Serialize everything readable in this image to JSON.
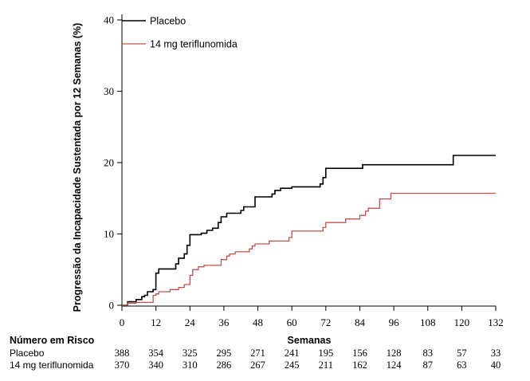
{
  "chart_data": {
    "type": "line",
    "xlabel": "Semanas",
    "ylabel": "Progressão da Incapacidade Sustentada por 12 Semanas (%)",
    "xlim": [
      0,
      132
    ],
    "ylim": [
      0,
      40
    ],
    "x_ticks": [
      0,
      12,
      24,
      36,
      48,
      60,
      72,
      84,
      96,
      108,
      120,
      132
    ],
    "y_ticks": [
      0,
      10,
      20,
      30,
      40
    ],
    "grid": false,
    "legend_position": "top-left",
    "series": [
      {
        "name": "Placebo",
        "color": "#000000",
        "step": true,
        "points": [
          [
            0,
            0
          ],
          [
            2,
            0.5
          ],
          [
            4,
            0.5
          ],
          [
            5,
            0.8
          ],
          [
            7,
            1.2
          ],
          [
            8,
            1.4
          ],
          [
            9,
            1.9
          ],
          [
            11,
            2.2
          ],
          [
            12,
            4.5
          ],
          [
            13,
            5.1
          ],
          [
            18,
            5.1
          ],
          [
            19,
            5.8
          ],
          [
            20,
            6.6
          ],
          [
            22,
            7.2
          ],
          [
            23,
            8.4
          ],
          [
            24,
            9.9
          ],
          [
            28,
            10.1
          ],
          [
            30,
            10.5
          ],
          [
            32,
            10.8
          ],
          [
            34,
            11.6
          ],
          [
            35,
            12.4
          ],
          [
            37,
            12.9
          ],
          [
            42,
            13.3
          ],
          [
            43,
            13.8
          ],
          [
            47,
            15.2
          ],
          [
            53,
            15.6
          ],
          [
            54,
            16.1
          ],
          [
            56,
            16.4
          ],
          [
            60,
            16.6
          ],
          [
            70,
            17.0
          ],
          [
            71,
            17.9
          ],
          [
            72,
            19.2
          ],
          [
            85,
            19.7
          ],
          [
            117,
            21.0
          ],
          [
            132,
            21.0
          ]
        ]
      },
      {
        "name": "14 mg teriflunomida",
        "color": "#c0504d",
        "step": true,
        "points": [
          [
            0,
            0
          ],
          [
            2,
            0.3
          ],
          [
            5,
            0.4
          ],
          [
            11,
            1.4
          ],
          [
            12,
            1.6
          ],
          [
            13,
            1.9
          ],
          [
            17,
            2.2
          ],
          [
            20,
            2.5
          ],
          [
            22,
            2.9
          ],
          [
            24,
            4.2
          ],
          [
            25,
            5.0
          ],
          [
            27,
            5.4
          ],
          [
            29,
            5.6
          ],
          [
            35,
            6.4
          ],
          [
            37,
            6.9
          ],
          [
            38,
            7.2
          ],
          [
            40,
            7.5
          ],
          [
            45,
            7.9
          ],
          [
            46,
            8.3
          ],
          [
            47,
            8.6
          ],
          [
            52,
            9.0
          ],
          [
            59,
            9.5
          ],
          [
            60,
            10.4
          ],
          [
            71,
            10.9
          ],
          [
            72,
            11.6
          ],
          [
            79,
            12.1
          ],
          [
            84,
            12.6
          ],
          [
            86,
            13.2
          ],
          [
            87,
            13.6
          ],
          [
            91,
            14.9
          ],
          [
            95,
            15.7
          ],
          [
            132,
            15.7
          ]
        ]
      }
    ],
    "risk_table": {
      "title": "Número em Risco",
      "x": [
        0,
        12,
        24,
        36,
        48,
        60,
        72,
        84,
        96,
        108,
        120,
        132
      ],
      "rows": [
        {
          "label": "Placebo",
          "values": [
            388,
            354,
            325,
            295,
            271,
            241,
            195,
            156,
            128,
            83,
            57,
            33
          ]
        },
        {
          "label": "14 mg teriflunomida",
          "values": [
            370,
            340,
            310,
            286,
            267,
            245,
            211,
            162,
            124,
            87,
            63,
            40
          ]
        }
      ]
    }
  }
}
